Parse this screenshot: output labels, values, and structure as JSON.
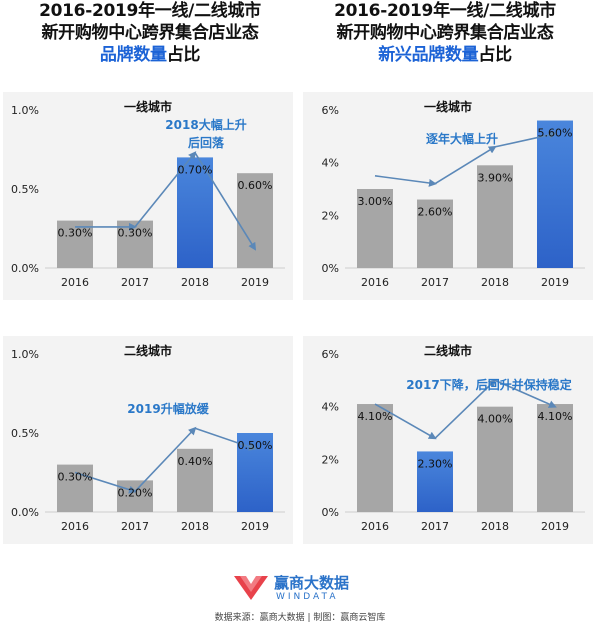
{
  "headlines": {
    "left": {
      "line1": "2016-2019年一线/二线城市",
      "line2": "新开购物中心跨界集合店业态",
      "accent": "品牌数量",
      "suffix": "占比"
    },
    "right": {
      "line1": "2016-2019年一线/二线城市",
      "line2": "新开购物中心跨界集合店业态",
      "accent": "新兴品牌数量",
      "suffix": "占比"
    }
  },
  "chart_data": [
    {
      "type": "bar",
      "title": "一线城市",
      "categories": [
        "2016",
        "2017",
        "2018",
        "2019"
      ],
      "values": [
        0.3,
        0.3,
        0.7,
        0.6
      ],
      "value_labels": [
        "0.30%",
        "0.30%",
        "0.70%",
        "0.60%"
      ],
      "y_ticks": [
        "0.0%",
        "0.5%",
        "1.0%"
      ],
      "y_tick_values": [
        0,
        0.5,
        1.0
      ],
      "ylim": [
        0,
        1.0
      ],
      "highlight_index": 2,
      "trend": [
        0.26,
        0.26,
        0.73,
        0.12
      ],
      "annotation": "2018大幅上升\n后回落"
    },
    {
      "type": "bar",
      "title": "一线城市",
      "categories": [
        "2016",
        "2017",
        "2018",
        "2019"
      ],
      "values": [
        3.0,
        2.6,
        3.9,
        5.6
      ],
      "value_labels": [
        "3.00%",
        "2.60%",
        "3.90%",
        "5.60%"
      ],
      "y_ticks": [
        "0%",
        "2%",
        "4%",
        "6%"
      ],
      "y_tick_values": [
        0,
        2,
        4,
        6
      ],
      "ylim": [
        0,
        6
      ],
      "highlight_index": 3,
      "trend": [
        3.5,
        3.2,
        4.6,
        5.1
      ],
      "annotation": "逐年大幅上升"
    },
    {
      "type": "bar",
      "title": "二线城市",
      "categories": [
        "2016",
        "2017",
        "2018",
        "2019"
      ],
      "values": [
        0.3,
        0.2,
        0.4,
        0.5
      ],
      "value_labels": [
        "0.30%",
        "0.20%",
        "0.40%",
        "0.50%"
      ],
      "y_ticks": [
        "0.0%",
        "0.5%",
        "1.0%"
      ],
      "y_tick_values": [
        0,
        0.5,
        1.0
      ],
      "ylim": [
        0,
        1.0
      ],
      "highlight_index": 3,
      "trend": [
        0.25,
        0.13,
        0.53,
        0.4
      ],
      "annotation": "2019升幅放缓"
    },
    {
      "type": "bar",
      "title": "二线城市",
      "categories": [
        "2016",
        "2017",
        "2018",
        "2019"
      ],
      "values": [
        4.1,
        2.3,
        4.0,
        4.1
      ],
      "value_labels": [
        "4.10%",
        "2.30%",
        "4.00%",
        "4.10%"
      ],
      "y_ticks": [
        "0%",
        "2%",
        "4%",
        "6%"
      ],
      "y_tick_values": [
        0,
        2,
        4,
        6
      ],
      "ylim": [
        0,
        6
      ],
      "highlight_index": 1,
      "trend": [
        4.1,
        2.8,
        5.0,
        4.0
      ],
      "annotation": "2017下降，后回升并保持稳定"
    }
  ],
  "colors": {
    "bar_gray": "#a6a6a6",
    "bar_blue": "#2d62c8",
    "bar_blue_light": "#4a86dc",
    "trend_line": "#5b88b8",
    "accent": "#1c63d6"
  },
  "logo": {
    "name": "赢商大数据",
    "sub": "WINDATA"
  },
  "source": "数据来源：赢商大数据 | 制图：赢商云智库"
}
